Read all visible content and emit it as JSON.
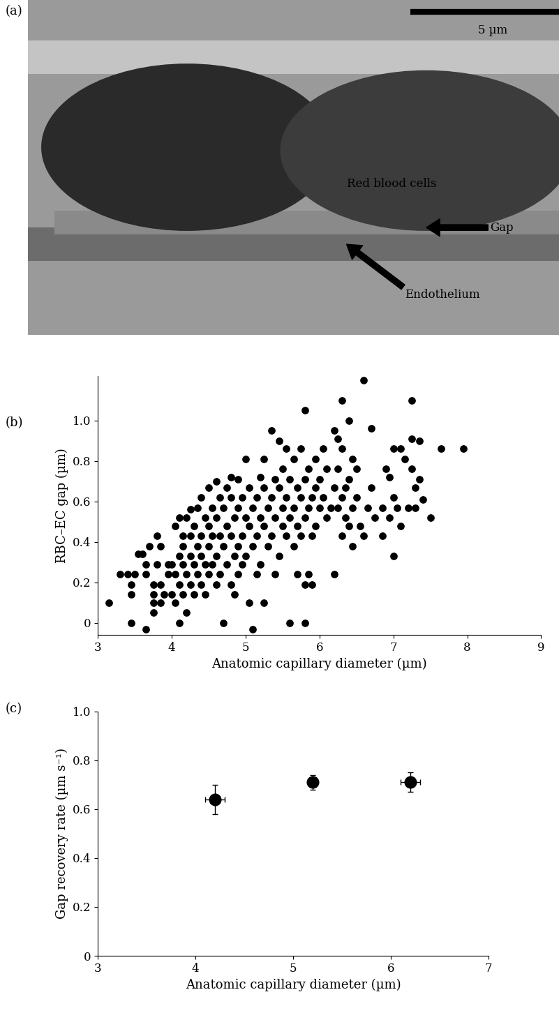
{
  "chart_data": [
    {
      "type": "image",
      "label": "(a)",
      "scale_bar": "5 µm",
      "annotations": [
        "Red blood cells",
        "Gap",
        "Endothelium"
      ]
    },
    {
      "type": "scatter",
      "label": "(b)",
      "x_label": "Anatomic capillary diameter (µm)",
      "y_label": "RBC–EC gap (µm)",
      "color": "#000000",
      "marker": "o",
      "x": [
        3.15,
        3.3,
        3.4,
        3.45,
        3.45,
        3.45,
        3.5,
        3.55,
        3.6,
        3.65,
        3.65,
        3.65,
        3.7,
        3.75,
        3.75,
        3.75,
        3.75,
        3.8,
        3.8,
        3.85,
        3.85,
        3.85,
        3.9,
        3.95,
        3.95,
        4.0,
        4.0,
        4.05,
        4.05,
        4.05,
        4.1,
        4.1,
        4.1,
        4.1,
        4.15,
        4.15,
        4.15,
        4.15,
        4.2,
        4.2,
        4.2,
        4.25,
        4.25,
        4.25,
        4.25,
        4.3,
        4.3,
        4.3,
        4.35,
        4.35,
        4.35,
        4.4,
        4.4,
        4.4,
        4.4,
        4.45,
        4.45,
        4.45,
        4.5,
        4.5,
        4.5,
        4.5,
        4.55,
        4.55,
        4.55,
        4.6,
        4.6,
        4.6,
        4.6,
        4.65,
        4.65,
        4.65,
        4.7,
        4.7,
        4.7,
        4.75,
        4.75,
        4.75,
        4.8,
        4.8,
        4.8,
        4.8,
        4.85,
        4.85,
        4.85,
        4.9,
        4.9,
        4.9,
        4.9,
        4.95,
        4.95,
        4.95,
        5.0,
        5.0,
        5.0,
        5.05,
        5.05,
        5.05,
        5.1,
        5.1,
        5.1,
        5.15,
        5.15,
        5.15,
        5.2,
        5.2,
        5.2,
        5.25,
        5.25,
        5.25,
        5.25,
        5.3,
        5.3,
        5.35,
        5.35,
        5.35,
        5.4,
        5.4,
        5.4,
        5.45,
        5.45,
        5.45,
        5.5,
        5.5,
        5.5,
        5.55,
        5.55,
        5.55,
        5.6,
        5.6,
        5.6,
        5.65,
        5.65,
        5.65,
        5.7,
        5.7,
        5.7,
        5.75,
        5.75,
        5.75,
        5.8,
        5.8,
        5.8,
        5.8,
        5.8,
        5.85,
        5.85,
        5.85,
        5.9,
        5.9,
        5.9,
        5.95,
        5.95,
        5.95,
        6.0,
        6.0,
        6.05,
        6.05,
        6.1,
        6.1,
        6.15,
        6.2,
        6.2,
        6.2,
        6.25,
        6.25,
        6.25,
        6.3,
        6.3,
        6.3,
        6.3,
        6.35,
        6.35,
        6.4,
        6.4,
        6.4,
        6.45,
        6.45,
        6.45,
        6.5,
        6.5,
        6.6,
        6.55,
        6.6,
        6.65,
        6.7,
        6.7,
        6.75,
        6.85,
        6.9,
        6.95,
        7.0,
        7.0,
        7.0,
        7.05,
        7.1,
        7.15,
        7.2,
        7.25,
        7.25,
        7.25,
        7.3,
        7.35,
        7.35,
        7.4,
        7.5,
        7.65,
        7.95,
        6.85,
        6.95,
        7.1,
        7.3
      ],
      "values": [
        0.1,
        0.24,
        0.24,
        0.19,
        0.14,
        0.0,
        0.24,
        0.34,
        0.34,
        -0.03,
        0.24,
        0.29,
        0.38,
        0.19,
        0.14,
        0.05,
        0.1,
        0.43,
        0.29,
        0.19,
        0.1,
        0.38,
        0.14,
        0.29,
        0.24,
        0.29,
        0.14,
        0.48,
        0.24,
        0.1,
        0.52,
        0.33,
        0.19,
        0.0,
        0.43,
        0.38,
        0.29,
        0.14,
        0.52,
        0.24,
        0.05,
        0.56,
        0.43,
        0.33,
        0.19,
        0.48,
        0.29,
        0.14,
        0.57,
        0.38,
        0.24,
        0.62,
        0.43,
        0.33,
        0.19,
        0.52,
        0.29,
        0.14,
        0.67,
        0.48,
        0.38,
        0.24,
        0.57,
        0.43,
        0.29,
        0.7,
        0.52,
        0.33,
        0.19,
        0.62,
        0.43,
        0.24,
        0.57,
        0.38,
        0.0,
        0.67,
        0.48,
        0.29,
        0.72,
        0.62,
        0.43,
        0.19,
        0.52,
        0.33,
        0.14,
        0.71,
        0.57,
        0.38,
        0.24,
        0.62,
        0.43,
        0.29,
        0.81,
        0.52,
        0.33,
        0.67,
        0.48,
        0.1,
        -0.03,
        0.57,
        0.38,
        0.62,
        0.43,
        0.24,
        0.72,
        0.52,
        0.29,
        0.81,
        0.67,
        0.48,
        0.1,
        0.57,
        0.38,
        0.95,
        0.62,
        0.43,
        0.71,
        0.52,
        0.24,
        0.9,
        0.67,
        0.33,
        0.76,
        0.57,
        0.48,
        0.86,
        0.62,
        0.43,
        0.71,
        0.52,
        0.0,
        0.81,
        0.57,
        0.38,
        0.67,
        0.48,
        0.24,
        0.86,
        0.62,
        0.43,
        1.05,
        0.71,
        0.52,
        0.19,
        0.0,
        0.76,
        0.57,
        0.24,
        0.62,
        0.43,
        0.19,
        0.81,
        0.67,
        0.48,
        0.71,
        0.57,
        0.86,
        0.62,
        0.76,
        0.52,
        0.57,
        0.95,
        0.67,
        0.24,
        0.91,
        0.76,
        0.57,
        1.1,
        0.86,
        0.62,
        0.43,
        0.67,
        0.52,
        1.0,
        0.71,
        0.48,
        0.81,
        0.57,
        0.38,
        0.76,
        0.62,
        1.2,
        0.48,
        0.43,
        0.57,
        0.96,
        0.67,
        0.52,
        0.57,
        0.76,
        0.52,
        0.86,
        0.62,
        0.33,
        0.57,
        0.48,
        0.81,
        0.57,
        1.1,
        0.91,
        0.76,
        0.67,
        0.9,
        0.71,
        0.61,
        0.52,
        0.86,
        0.86,
        0.43,
        0.72,
        0.86,
        0.57
      ],
      "xlim": [
        3,
        9
      ],
      "xticks": [
        3,
        4,
        5,
        6,
        7,
        8,
        9
      ],
      "ylim": [
        -0.06,
        1.22
      ],
      "yticks": [
        0,
        0.2,
        0.4,
        0.6,
        0.8,
        1.0
      ]
    },
    {
      "type": "scatter",
      "label": "(c)",
      "x_label": "Anatomic capillary diameter (µm)",
      "y_label": "Gap recovery rate (µm s⁻¹)",
      "color": "#000000",
      "marker": "o",
      "x": [
        4.2,
        5.2,
        6.2
      ],
      "values": [
        0.64,
        0.71,
        0.71
      ],
      "x_error": [
        0.1,
        0.05,
        0.1
      ],
      "y_error": [
        0.06,
        0.03,
        0.04
      ],
      "xlim": [
        3,
        7
      ],
      "xticks": [
        3,
        4,
        5,
        6,
        7
      ],
      "ylim": [
        0,
        1.0
      ],
      "yticks": [
        0,
        0.2,
        0.4,
        0.6,
        0.8,
        1.0
      ]
    }
  ]
}
